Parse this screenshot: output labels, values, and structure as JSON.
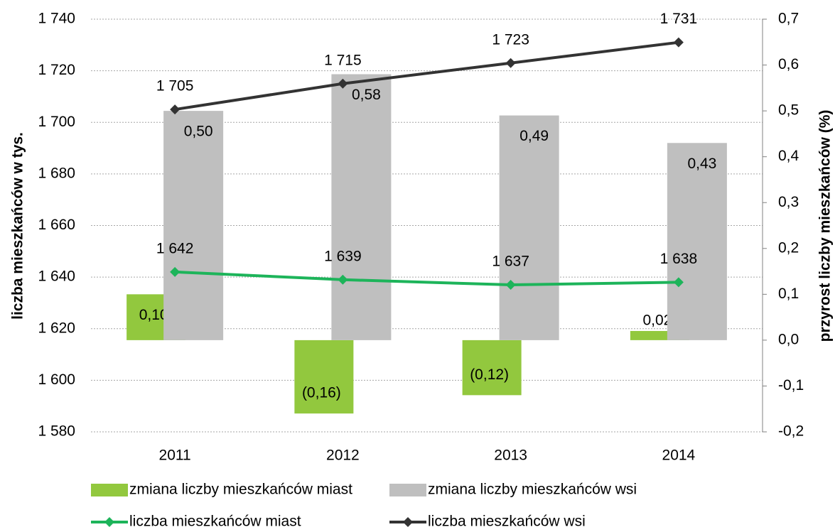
{
  "chart_data": {
    "type": "combo",
    "y_label": "liczba mieszkańców w tys.",
    "y2_label": "przyrost liczby mieszkańców (%)",
    "categories": [
      "2011",
      "2012",
      "2013",
      "2014"
    ],
    "ylim": [
      1580,
      1740
    ],
    "yticks": [
      {
        "value": 1580,
        "label": "1 580"
      },
      {
        "value": 1600,
        "label": "1 600"
      },
      {
        "value": 1620,
        "label": "1 620"
      },
      {
        "value": 1640,
        "label": "1 640"
      },
      {
        "value": 1660,
        "label": "1 660"
      },
      {
        "value": 1680,
        "label": "1 680"
      },
      {
        "value": 1700,
        "label": "1 700"
      },
      {
        "value": 1720,
        "label": "1 720"
      },
      {
        "value": 1740,
        "label": "1 740"
      }
    ],
    "y2lim": [
      -0.2,
      0.7
    ],
    "y2ticks": [
      {
        "value": -0.2,
        "label": "-0,2"
      },
      {
        "value": -0.1,
        "label": "-0,1"
      },
      {
        "value": 0.0,
        "label": "0,0"
      },
      {
        "value": 0.1,
        "label": "0,1"
      },
      {
        "value": 0.2,
        "label": "0,2"
      },
      {
        "value": 0.3,
        "label": "0,3"
      },
      {
        "value": 0.4,
        "label": "0,4"
      },
      {
        "value": 0.5,
        "label": "0,5"
      },
      {
        "value": 0.6,
        "label": "0,6"
      },
      {
        "value": 0.7,
        "label": "0,7"
      }
    ],
    "grid": true,
    "legend": "bottom",
    "series": [
      {
        "name": "zmiana liczby mieszkańców miast",
        "type": "bar",
        "axis": "y2",
        "color": "#92c83e",
        "values": [
          0.1,
          -0.16,
          -0.12,
          0.02
        ],
        "value_labels": [
          "0,10",
          "(0,16)",
          "(0,12)",
          "0,02"
        ]
      },
      {
        "name": "zmiana liczby mieszkańców wsi",
        "type": "bar",
        "axis": "y2",
        "color": "#bfbfbf",
        "values": [
          0.5,
          0.58,
          0.49,
          0.43
        ],
        "value_labels": [
          "0,50",
          "0,58",
          "0,49",
          "0,43"
        ]
      },
      {
        "name": "liczba mieszkańców miast",
        "type": "line",
        "axis": "y",
        "color": "#1db45a",
        "values": [
          1642,
          1639,
          1637,
          1638
        ],
        "value_labels": [
          "1 642",
          "1 639",
          "1 637",
          "1 638"
        ]
      },
      {
        "name": "liczba mieszkańców wsi",
        "type": "line",
        "axis": "y",
        "color": "#333333",
        "values": [
          1705,
          1715,
          1723,
          1731
        ],
        "value_labels": [
          "1 705",
          "1 715",
          "1 723",
          "1 731"
        ]
      }
    ]
  }
}
